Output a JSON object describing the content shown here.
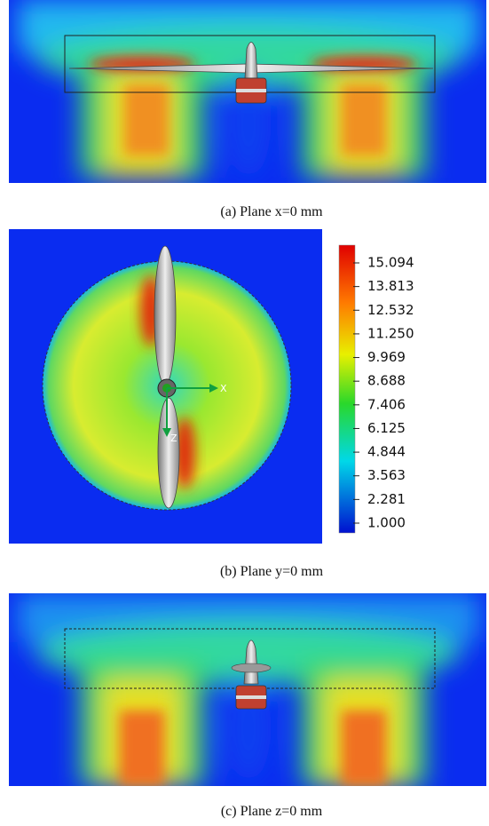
{
  "panels": [
    {
      "caption": "(a) Plane x=0 mm"
    },
    {
      "caption": "(b) Plane y=0 mm",
      "axis_labels": [
        "X",
        "Z"
      ]
    },
    {
      "caption": "(c) Plane z=0 mm"
    }
  ],
  "colorbar": {
    "labels": [
      "15.094",
      "13.813",
      "12.532",
      "11.250",
      "9.969",
      "8.688",
      "7.406",
      "6.125",
      "4.844",
      "3.563",
      "2.281",
      "1.000"
    ]
  }
}
